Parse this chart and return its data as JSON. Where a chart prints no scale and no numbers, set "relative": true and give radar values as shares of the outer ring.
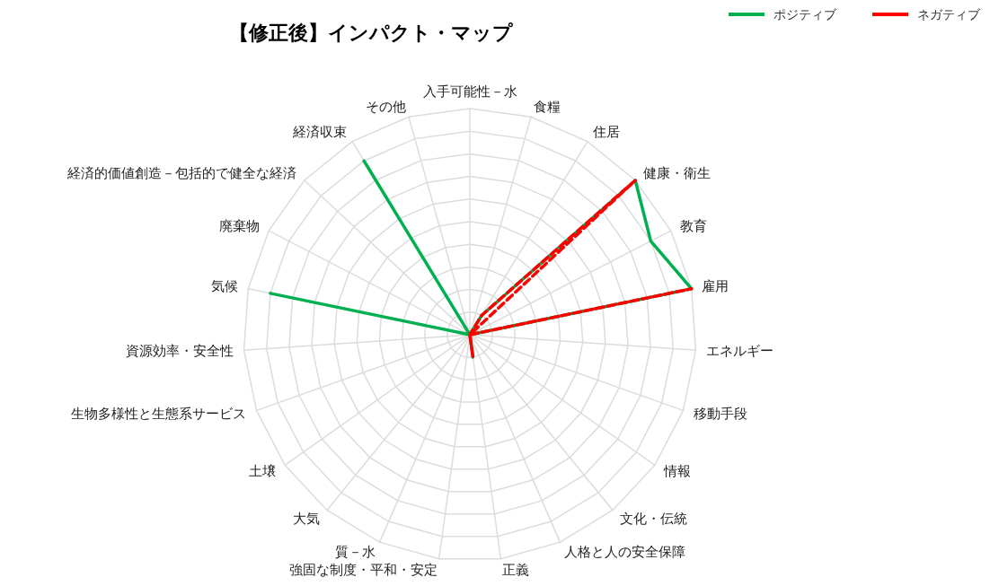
{
  "chart_data": {
    "type": "radar",
    "title": "【修正後】インパクト・マップ",
    "relative": true,
    "grid": true,
    "legend": "top right",
    "marker": "none",
    "categories": [
      "入手可能性－水",
      "食糧",
      "住居",
      "健康・衛生",
      "教育",
      "雇用",
      "エネルギー",
      "移動手段",
      "情報",
      "文化・伝統",
      "人格と人の安全保障",
      "正義",
      "強固な制度・平和・安定",
      "質－水",
      "大気",
      "土壌",
      "生物多様性と生態系サービス",
      "資源効率・安全性",
      "気候",
      "廃棄物",
      "経済的価値創造－包括的で健全な経済",
      "経済収束",
      "その他"
    ],
    "series": [
      {
        "name": "ポジティブ",
        "color": "#00b050",
        "line_style": "solid",
        "values": [
          0,
          0,
          0.1,
          1,
          0.9,
          1,
          0,
          0,
          0,
          0,
          0,
          0.1,
          0,
          0,
          0,
          0,
          0,
          0,
          0.9,
          0,
          0,
          0.9,
          0
        ]
      },
      {
        "name": "ネガティブ",
        "color": "#ff0000",
        "line_style": "dashed",
        "values": [
          0,
          0,
          0.1,
          1,
          0,
          1,
          0,
          0,
          0,
          0,
          0,
          0.1,
          0,
          0,
          0,
          0,
          0,
          0,
          0,
          0,
          0,
          0,
          0
        ]
      }
    ]
  }
}
